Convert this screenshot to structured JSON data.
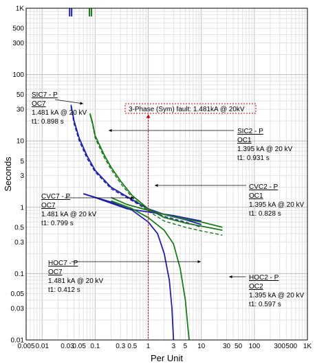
{
  "chart_data": {
    "type": "line",
    "xlabel": "Per Unit",
    "ylabel": "Seconds",
    "x_scale": "log",
    "y_scale": "log",
    "xlim": [
      0.005,
      1000
    ],
    "ylim": [
      0.01,
      1000
    ],
    "x_ticks": [
      {
        "value": 0.005,
        "label": "0.005"
      },
      {
        "value": 0.01,
        "label": "0.01"
      },
      {
        "value": 0.03,
        "label": "0.03"
      },
      {
        "value": 0.05,
        "label": "0.05"
      },
      {
        "value": 0.1,
        "label": "0.1"
      },
      {
        "value": 0.3,
        "label": "0.3"
      },
      {
        "value": 0.5,
        "label": "0.5"
      },
      {
        "value": 1,
        "label": "1"
      },
      {
        "value": 3,
        "label": "3"
      },
      {
        "value": 5,
        "label": "5"
      },
      {
        "value": 10,
        "label": "10"
      },
      {
        "value": 30,
        "label": "30"
      },
      {
        "value": 50,
        "label": "50"
      },
      {
        "value": 100,
        "label": "100"
      },
      {
        "value": 300,
        "label": "300"
      },
      {
        "value": 500,
        "label": "500"
      },
      {
        "value": 1000,
        "label": "1K"
      }
    ],
    "y_ticks": [
      {
        "value": 0.01,
        "label": "0.01"
      },
      {
        "value": 0.03,
        "label": "0.03"
      },
      {
        "value": 0.05,
        "label": "0.05"
      },
      {
        "value": 0.1,
        "label": "0.1"
      },
      {
        "value": 0.3,
        "label": "0.3"
      },
      {
        "value": 0.5,
        "label": "0.5"
      },
      {
        "value": 1,
        "label": "1"
      },
      {
        "value": 3,
        "label": "3"
      },
      {
        "value": 5,
        "label": "5"
      },
      {
        "value": 10,
        "label": "10"
      },
      {
        "value": 30,
        "label": "30"
      },
      {
        "value": 50,
        "label": "50"
      },
      {
        "value": 100,
        "label": "100"
      },
      {
        "value": 300,
        "label": "300"
      },
      {
        "value": 500,
        "label": "500"
      },
      {
        "value": 1000,
        "label": "1K"
      }
    ],
    "fault_line": {
      "x": 1,
      "label": "3-Phase (Sym)  fault: 1.481kA @ 20kV",
      "color": "#c00000"
    },
    "series": [
      {
        "id": "sic7",
        "color": "#1f1fa8",
        "dash": false,
        "points": [
          [
            0.035,
            35
          ],
          [
            0.04,
            20
          ],
          [
            0.05,
            11
          ],
          [
            0.07,
            6
          ],
          [
            0.1,
            3.6
          ],
          [
            0.2,
            2
          ],
          [
            0.5,
            1.3
          ],
          [
            1,
            0.95
          ],
          [
            2,
            0.78
          ],
          [
            5,
            0.65
          ],
          [
            10,
            0.55
          ]
        ]
      },
      {
        "id": "sic7-dashed",
        "color": "#1f1fa8",
        "dash": true,
        "points": [
          [
            0.035,
            33
          ],
          [
            0.04,
            18
          ],
          [
            0.05,
            10
          ],
          [
            0.07,
            5.5
          ],
          [
            0.1,
            3.4
          ],
          [
            0.2,
            1.9
          ],
          [
            0.5,
            1.25
          ],
          [
            1,
            0.9
          ],
          [
            2,
            0.73
          ],
          [
            5,
            0.6
          ],
          [
            10,
            0.5
          ]
        ]
      },
      {
        "id": "sic2",
        "color": "#1a7a1a",
        "dash": false,
        "points": [
          [
            0.08,
            26
          ],
          [
            0.09,
            18
          ],
          [
            0.1,
            12
          ],
          [
            0.15,
            6
          ],
          [
            0.2,
            4
          ],
          [
            0.3,
            2.5
          ],
          [
            0.5,
            1.5
          ],
          [
            1,
            0.95
          ],
          [
            2,
            0.7
          ],
          [
            5,
            0.58
          ],
          [
            10,
            0.52
          ],
          [
            25,
            0.45
          ]
        ]
      },
      {
        "id": "sic2-dashed",
        "color": "#1a7a1a",
        "dash": true,
        "points": [
          [
            0.08,
            25
          ],
          [
            0.09,
            17
          ],
          [
            0.1,
            11
          ],
          [
            0.15,
            5.5
          ],
          [
            0.2,
            3.7
          ],
          [
            0.3,
            2.3
          ],
          [
            0.5,
            1.4
          ],
          [
            1,
            0.88
          ],
          [
            2,
            0.62
          ],
          [
            5,
            0.5
          ],
          [
            10,
            0.44
          ],
          [
            25,
            0.38
          ]
        ]
      },
      {
        "id": "cvc7",
        "color": "#1f1fa8",
        "dash": false,
        "points": [
          [
            0.06,
            1.6
          ],
          [
            0.1,
            1.4
          ],
          [
            0.2,
            1.15
          ],
          [
            0.4,
            0.95
          ],
          [
            1,
            0.85
          ],
          [
            3,
            0.75
          ],
          [
            10,
            0.62
          ]
        ]
      },
      {
        "id": "cvc2",
        "color": "#1a7a1a",
        "dash": false,
        "points": [
          [
            0.2,
            1.4
          ],
          [
            0.4,
            1.1
          ],
          [
            1,
            0.9
          ],
          [
            2,
            0.78
          ],
          [
            5,
            0.66
          ],
          [
            10,
            0.6
          ],
          [
            25,
            0.5
          ]
        ]
      },
      {
        "id": "hoc7",
        "color": "#1f1fa8",
        "dash": false,
        "points": [
          [
            0.06,
            1.6
          ],
          [
            0.2,
            1.2
          ],
          [
            0.5,
            0.9
          ],
          [
            1,
            0.6
          ],
          [
            1.5,
            0.4
          ],
          [
            2,
            0.2
          ],
          [
            2.5,
            0.08
          ],
          [
            2.8,
            0.03
          ],
          [
            3,
            0.01
          ]
        ]
      },
      {
        "id": "hoc2",
        "color": "#1a7a1a",
        "dash": false,
        "points": [
          [
            0.2,
            1.25
          ],
          [
            0.5,
            0.95
          ],
          [
            1,
            0.7
          ],
          [
            2,
            0.45
          ],
          [
            3,
            0.28
          ],
          [
            4,
            0.12
          ],
          [
            5,
            0.04
          ],
          [
            5.6,
            0.015
          ],
          [
            5.9,
            0.01
          ]
        ]
      }
    ],
    "annotations": [
      {
        "id": "sic7",
        "lines": [
          "SIC7 - P",
          "OC7",
          "1.481 kA @ 20 kV",
          "t1: 0.898 s"
        ]
      },
      {
        "id": "sic2",
        "lines": [
          "SIC2 - P",
          "OC1",
          "1.395 kA @ 20 kV",
          "t1: 0.931 s"
        ]
      },
      {
        "id": "cvc7",
        "lines": [
          "CVC7 - P",
          "OC7",
          "1.481 kA @ 20 kV",
          "t1: 0.799 s"
        ]
      },
      {
        "id": "cvc2",
        "lines": [
          "CVC2 - P",
          "OC1",
          "1.395 kA @ 20 kV",
          "t1: 0.828 s"
        ]
      },
      {
        "id": "hoc7",
        "lines": [
          "HOC7 - P",
          "OC7",
          "1.481 kA @ 20 kV",
          "t1: 0.412 s"
        ]
      },
      {
        "id": "hoc2",
        "lines": [
          "HOC2 - P",
          "OC2",
          "1.395 kA @ 20 kV",
          "t1: 0.597 s"
        ]
      }
    ],
    "top_markers": [
      {
        "color": "#1f1fa8",
        "x": 0.033
      },
      {
        "color": "#1f1fa8",
        "x": 0.036
      },
      {
        "color": "#1a7a1a",
        "x": 0.078
      },
      {
        "color": "#1a7a1a",
        "x": 0.085
      }
    ]
  }
}
